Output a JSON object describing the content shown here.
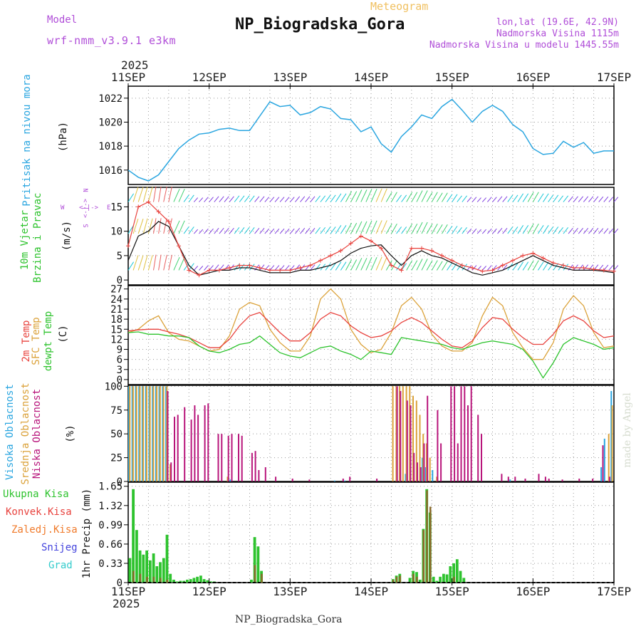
{
  "header": {
    "model_label": "Model",
    "model_name": "wrf-nmm_v3.9.1 e3km",
    "meteogram_label": "Meteogram",
    "station": "NP_Biogradska_Gora",
    "lonlat": "lon,lat (19.6E, 42.9N)",
    "altitude": "Nadmorska Visina 1115m",
    "model_altitude": "Nadmorska Visina u modelu 1445.55m",
    "footer_station": "NP_Biogradska_Gora",
    "credit": "made by Angel"
  },
  "time_axis": {
    "year": "2025",
    "days": [
      "11SEP",
      "12SEP",
      "13SEP",
      "14SEP",
      "15SEP",
      "16SEP",
      "17SEP"
    ]
  },
  "panels": {
    "pressure": {
      "label": "Pritisak na nivou mora",
      "unit": "(hPa)",
      "ticks": [
        "1016",
        "1018",
        "1020",
        "1022"
      ]
    },
    "wind": {
      "label1": "10m Vjetar",
      "label2": "Brzina i Pravac",
      "unit": "(m/s)",
      "ticks": [
        "0",
        "5",
        "10",
        "15"
      ],
      "compass": {
        "n": "N",
        "s": "S",
        "w": "W",
        "e": "E",
        "arrow_v": "<-|->",
        "arrow_h": "<-|->"
      }
    },
    "temp": {
      "label1": "2m Temp",
      "label2": "SFC Temp",
      "label3": "dewpt Temp",
      "unit": "(C)",
      "ticks": [
        "0",
        "3",
        "6",
        "9",
        "12",
        "15",
        "18",
        "21",
        "24",
        "27"
      ]
    },
    "cloud": {
      "label1": "Visoka Oblacnost",
      "label2": "Srednja Oblacnost",
      "label3": "Niska Oblacnost",
      "unit": "(%)",
      "ticks": [
        "0",
        "25",
        "50",
        "75",
        "100"
      ]
    },
    "precip": {
      "legend": [
        "Ukupna Kisa",
        "Konvek.Kisa",
        "Zaledj.Kisa",
        "Snijeg",
        "Grad"
      ],
      "unit": "1hr Precip (mm)",
      "ticks": [
        "0",
        "0.33",
        "0.66",
        "0.99",
        "1.32",
        "1.65"
      ]
    }
  },
  "colors": {
    "pressure": "#2ba6e0",
    "temp2m": "#e8423d",
    "sfc": "#dba23a",
    "dew": "#2ec32e",
    "high": "#2ba6e0",
    "mid": "#dba23a",
    "low": "#b8157b",
    "total": "#2ec32e",
    "conv": "#e8423d",
    "frz": "#f07a2a",
    "snow": "#4444dd",
    "hail": "#33cccc",
    "purple": "#b04ed8"
  },
  "chart_data": [
    {
      "type": "line",
      "title": "Pritisak na nivou mora",
      "ylabel": "(hPa)",
      "ylim": [
        1014.8,
        1023
      ],
      "x_unit": "hours from 11SEP 00UTC",
      "x": [
        0,
        3,
        6,
        9,
        12,
        15,
        18,
        21,
        24,
        27,
        30,
        33,
        36,
        39,
        42,
        45,
        48,
        51,
        54,
        57,
        60,
        63,
        66,
        69,
        72,
        75,
        78,
        81,
        84,
        87,
        90,
        93,
        96,
        99,
        102,
        105,
        108,
        111,
        114,
        117,
        120,
        123,
        126,
        129,
        132,
        135,
        138,
        141,
        144
      ],
      "series": [
        {
          "name": "Pressure",
          "values": [
            1016.0,
            1015.4,
            1015.1,
            1015.6,
            1016.7,
            1017.8,
            1018.5,
            1019.0,
            1019.1,
            1019.4,
            1019.5,
            1019.3,
            1019.3,
            1020.5,
            1021.7,
            1021.3,
            1021.4,
            1020.6,
            1020.8,
            1021.3,
            1021.1,
            1020.3,
            1020.2,
            1019.2,
            1019.6,
            1018.2,
            1017.5,
            1018.8,
            1019.6,
            1020.6,
            1020.3,
            1021.3,
            1021.9,
            1021.0,
            1020.0,
            1020.9,
            1021.4,
            1020.9,
            1019.8,
            1019.2,
            1017.8,
            1017.3,
            1017.4,
            1018.4,
            1017.9,
            1018.3,
            1017.4,
            1017.6,
            1017.6
          ]
        }
      ]
    },
    {
      "type": "line",
      "title": "10m Vjetar Brzina i Pravac",
      "ylabel": "(m/s)",
      "ylim": [
        -1,
        19
      ],
      "x_unit": "hours from 11SEP 00UTC",
      "x": [
        0,
        3,
        6,
        9,
        12,
        15,
        18,
        21,
        24,
        27,
        30,
        33,
        36,
        39,
        42,
        45,
        48,
        51,
        54,
        57,
        60,
        63,
        66,
        69,
        72,
        75,
        78,
        81,
        84,
        87,
        90,
        93,
        96,
        99,
        102,
        105,
        108,
        111,
        114,
        117,
        120,
        123,
        126,
        129,
        132,
        135,
        138,
        141,
        144
      ],
      "series": [
        {
          "name": "Wind speed",
          "values": [
            4,
            9,
            10,
            12,
            11,
            7,
            3,
            1,
            1.5,
            2,
            2,
            2.5,
            2.5,
            2,
            1.5,
            1.5,
            1.5,
            2,
            2,
            2.5,
            3,
            4,
            5.5,
            6.5,
            7,
            7.2,
            5,
            3,
            5,
            6,
            5,
            4.5,
            3.5,
            2.5,
            1.5,
            1,
            1.5,
            2,
            3,
            4,
            5,
            4,
            3,
            2.5,
            2,
            2,
            2,
            1.8,
            1.5
          ]
        },
        {
          "name": "Wind gust",
          "values": [
            7,
            15,
            16,
            14,
            12,
            7,
            2,
            1,
            2,
            2,
            2.5,
            3,
            3,
            2.5,
            2,
            2,
            2,
            2.5,
            3,
            4,
            5,
            6,
            7.5,
            9,
            8,
            6.5,
            3,
            2,
            6.5,
            6.5,
            6,
            5,
            4,
            3,
            2.5,
            1.8,
            2,
            3,
            4,
            5,
            5.5,
            4.5,
            3.5,
            3,
            2.5,
            2.5,
            2.2,
            2,
            1.8
          ]
        }
      ]
    },
    {
      "type": "line",
      "title": "2m Temp / SFC Temp / dewpt Temp",
      "ylabel": "(C)",
      "ylim": [
        -1.5,
        28
      ],
      "x_unit": "hours from 11SEP 00UTC",
      "x": [
        0,
        3,
        6,
        9,
        12,
        15,
        18,
        21,
        24,
        27,
        30,
        33,
        36,
        39,
        42,
        45,
        48,
        51,
        54,
        57,
        60,
        63,
        66,
        69,
        72,
        75,
        78,
        81,
        84,
        87,
        90,
        93,
        96,
        99,
        102,
        105,
        108,
        111,
        114,
        117,
        120,
        123,
        126,
        129,
        132,
        135,
        138,
        141,
        144
      ],
      "series": [
        {
          "name": "2m Temp",
          "values": [
            14.5,
            14.8,
            15,
            15,
            14.2,
            13.5,
            12.5,
            11,
            9.5,
            9.5,
            12,
            16,
            19,
            20,
            17,
            14,
            11.5,
            11.5,
            14,
            18,
            20,
            19,
            16,
            14,
            12.5,
            13,
            14.5,
            17,
            18.5,
            17,
            14.5,
            12,
            10,
            9.5,
            11.5,
            15.5,
            18.5,
            18,
            15,
            12.5,
            10.5,
            10.5,
            13.5,
            17.5,
            19,
            17.5,
            14.5,
            12.5,
            13
          ]
        },
        {
          "name": "SFC Temp",
          "values": [
            14,
            15,
            17.5,
            19,
            14,
            12,
            11.5,
            10,
            8.5,
            9,
            13,
            21,
            23,
            22,
            15,
            11,
            8.5,
            8.5,
            13,
            24,
            27,
            24,
            15,
            10.5,
            8,
            9,
            14,
            22,
            24.5,
            21,
            13.5,
            10,
            8.5,
            8.5,
            11,
            19,
            24.5,
            22,
            14,
            9.5,
            6,
            6,
            11,
            21,
            25,
            22,
            14,
            9.5,
            10
          ]
        },
        {
          "name": "dewpt Temp",
          "values": [
            14,
            14.2,
            13.5,
            13.5,
            13,
            13,
            12.5,
            10,
            8.5,
            8,
            9,
            10.5,
            11,
            13,
            10.5,
            8,
            7,
            6.5,
            8,
            9.5,
            10,
            8.5,
            7.5,
            6,
            8.5,
            8,
            7.5,
            12.5,
            12,
            11.5,
            11,
            10.5,
            9.5,
            9,
            10,
            11,
            11.5,
            11,
            10.5,
            9,
            5.5,
            0.5,
            5,
            10.5,
            12.5,
            11.5,
            10.5,
            9,
            9.5
          ]
        }
      ]
    },
    {
      "type": "bar",
      "title": "Visoka / Srednja / Niska Oblacnost",
      "ylabel": "(%)",
      "ylim": [
        0,
        100
      ],
      "x_unit": "hours from 11SEP 00UTC",
      "series": [
        {
          "name": "Visoka Oblacnost",
          "hours": [
            0,
            1,
            2,
            3,
            4,
            5,
            6,
            7,
            8,
            9,
            10,
            11,
            30,
            61,
            64,
            82,
            87,
            88,
            90,
            113,
            140,
            141,
            143
          ],
          "values": [
            100,
            100,
            100,
            100,
            100,
            100,
            100,
            100,
            100,
            100,
            100,
            100,
            2,
            1,
            1,
            8,
            25,
            15,
            12,
            2,
            15,
            45,
            95
          ]
        },
        {
          "name": "Srednja Oblacnost",
          "hours": [
            0,
            1,
            2,
            3,
            4,
            5,
            6,
            7,
            8,
            9,
            10,
            11,
            12,
            29,
            78,
            79,
            80,
            81,
            82,
            83,
            84,
            85,
            86,
            87,
            88,
            89,
            91,
            142,
            143
          ],
          "values": [
            100,
            100,
            100,
            100,
            100,
            100,
            100,
            100,
            100,
            100,
            100,
            100,
            18,
            5,
            100,
            100,
            100,
            100,
            100,
            100,
            90,
            85,
            70,
            50,
            40,
            25,
            5,
            50,
            80
          ]
        },
        {
          "name": "Niska Oblacnost",
          "hours": [
            11,
            12,
            13,
            14,
            16,
            18,
            19,
            20,
            22,
            23,
            26,
            27,
            29,
            30,
            32,
            33,
            36,
            37,
            38,
            40,
            43,
            48,
            53,
            63,
            65,
            73,
            79,
            80,
            82,
            83,
            84,
            85,
            86,
            87,
            88,
            91,
            92,
            95,
            96,
            97,
            98,
            99,
            100,
            101,
            103,
            104,
            110,
            112,
            114,
            117,
            121,
            123,
            124,
            128,
            133,
            137,
            140,
            142
          ],
          "values": [
            95,
            20,
            68,
            70,
            78,
            65,
            80,
            70,
            80,
            82,
            50,
            50,
            48,
            50,
            50,
            48,
            30,
            32,
            12,
            15,
            5,
            3,
            2,
            3,
            5,
            3,
            100,
            95,
            85,
            80,
            30,
            20,
            15,
            40,
            90,
            75,
            40,
            100,
            100,
            40,
            100,
            100,
            80,
            100,
            70,
            50,
            8,
            5,
            5,
            3,
            8,
            5,
            3,
            2,
            3,
            3,
            38,
            5
          ]
        }
      ]
    },
    {
      "type": "bar",
      "title": "1hr Precip",
      "ylabel": "1hr Precip (mm)",
      "ylim": [
        0,
        1.65
      ],
      "x_unit": "hours from 11SEP 00UTC",
      "series": [
        {
          "name": "Ukupna Kisa",
          "hours": [
            0,
            1,
            2,
            3,
            4,
            5,
            6,
            7,
            8,
            9,
            10,
            11,
            12,
            13,
            14,
            15,
            16,
            17,
            18,
            19,
            20,
            21,
            22,
            23,
            24,
            25,
            36,
            37,
            38,
            39,
            78,
            79,
            80,
            83,
            84,
            85,
            86,
            87,
            88,
            89,
            90,
            91,
            92,
            93,
            94,
            95,
            96,
            97,
            98,
            99
          ],
          "values": [
            0.42,
            1.6,
            0.9,
            0.55,
            0.48,
            0.55,
            0.38,
            0.5,
            0.28,
            0.35,
            0.42,
            0.82,
            0.15,
            0.05,
            0.02,
            0.03,
            0.03,
            0.05,
            0.06,
            0.08,
            0.1,
            0.12,
            0.06,
            0.04,
            0.02,
            0.02,
            0.05,
            0.78,
            0.62,
            0.2,
            0.06,
            0.12,
            0.15,
            0.08,
            0.2,
            0.18,
            0.05,
            0.92,
            1.6,
            1.2,
            0.1,
            0.03,
            0.1,
            0.15,
            0.14,
            0.28,
            0.33,
            0.4,
            0.2,
            0.08
          ]
        },
        {
          "name": "Konvek.Kisa",
          "hours": [
            1,
            3,
            5,
            7,
            9,
            11,
            37,
            39,
            78,
            79,
            80,
            84,
            85,
            87,
            88,
            89,
            96
          ],
          "values": [
            0.2,
            0.15,
            0.1,
            0.1,
            0.08,
            0.05,
            0.3,
            0.15,
            0.05,
            0.1,
            0.12,
            0.15,
            0.1,
            0.9,
            1.58,
            1.3,
            0.1
          ]
        }
      ]
    }
  ]
}
